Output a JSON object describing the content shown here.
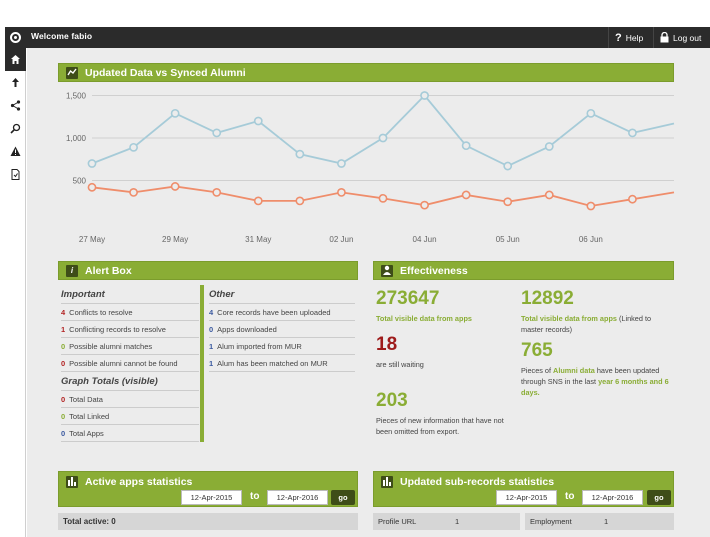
{
  "topbar": {
    "welcome": "Welcome fabio",
    "help": "Help",
    "logout": "Log out"
  },
  "sidebar": {
    "items": [
      "home-icon",
      "upload-arrow-icon",
      "share-icon",
      "search-icon",
      "warning-icon",
      "document-icon"
    ]
  },
  "chart_panel": {
    "title": "Updated Data vs Synced Alumni",
    "chart_data": {
      "type": "line",
      "y_ticks": [
        "1,500",
        "1,000",
        "500"
      ],
      "ylim": [
        0,
        1600
      ],
      "x_labels": [
        "27 May",
        "29 May",
        "31 May",
        "02 Jun",
        "04 Jun",
        "05 Jun",
        "06 Jun"
      ],
      "grid": true,
      "series": [
        {
          "values": [
            700,
            890,
            1290,
            1060,
            1200,
            810,
            700,
            1000,
            1500,
            910,
            670,
            900,
            1290,
            1060,
            1170
          ],
          "color": "#a6cbd8"
        },
        {
          "values": [
            420,
            360,
            430,
            360,
            260,
            260,
            360,
            290,
            210,
            330,
            250,
            330,
            200,
            280,
            360
          ],
          "color": "#ef8d6b"
        }
      ]
    }
  },
  "alert_box": {
    "title": "Alert Box",
    "important_heading": "Important",
    "important": [
      {
        "count": "4",
        "label": "Conflicts to resolve"
      },
      {
        "count": "1",
        "label": "Conflicting records to resolve"
      },
      {
        "count": "0",
        "label": "Possible alumni matches"
      },
      {
        "count": "0",
        "label": "Possible alumni cannot be found"
      }
    ],
    "graph_heading": "Graph Totals (visible)",
    "graph": [
      {
        "count": "0",
        "label": "Total Data"
      },
      {
        "count": "0",
        "label": "Total Linked"
      },
      {
        "count": "0",
        "label": "Total Apps"
      }
    ],
    "other_heading": "Other",
    "other": [
      {
        "count": "4",
        "label": "Core records have been uploaded"
      },
      {
        "count": "0",
        "label": "Apps downloaded"
      },
      {
        "count": "1",
        "label": "Alum imported from MUR"
      },
      {
        "count": "1",
        "label": "Alum has been matched on MUR"
      }
    ]
  },
  "effectiveness": {
    "title": "Effectiveness",
    "stat1": {
      "value": "273647",
      "caption": "Total visible data from apps"
    },
    "stat2": {
      "value": "18",
      "caption": "are still waiting"
    },
    "stat3": {
      "value": "203",
      "caption": "Pieces of new information that have not been omitted from export."
    },
    "stat4": {
      "value": "12892",
      "caption_green": "Total visible data from apps",
      "caption_rest": " (Linked to master records)"
    },
    "stat5": {
      "value": "765",
      "caption_a": "Pieces of ",
      "caption_b": "Alumni data",
      "caption_c": " have been updated through SNS in the last ",
      "caption_d": "year 6 months and 6 days."
    }
  },
  "apps_stats": {
    "title": "Active apps statistics",
    "from": "12-Apr-2015",
    "to_label": "to",
    "to": "12-Apr-2016",
    "go": "go",
    "total": "Total active: 0"
  },
  "sub_stats": {
    "title": "Updated sub-records statistics",
    "from": "12-Apr-2015",
    "to_label": "to",
    "to": "12-Apr-2016",
    "go": "go",
    "cells": [
      {
        "label": "Profile URL",
        "value": "1"
      },
      {
        "label": "Employment",
        "value": "1"
      }
    ]
  }
}
